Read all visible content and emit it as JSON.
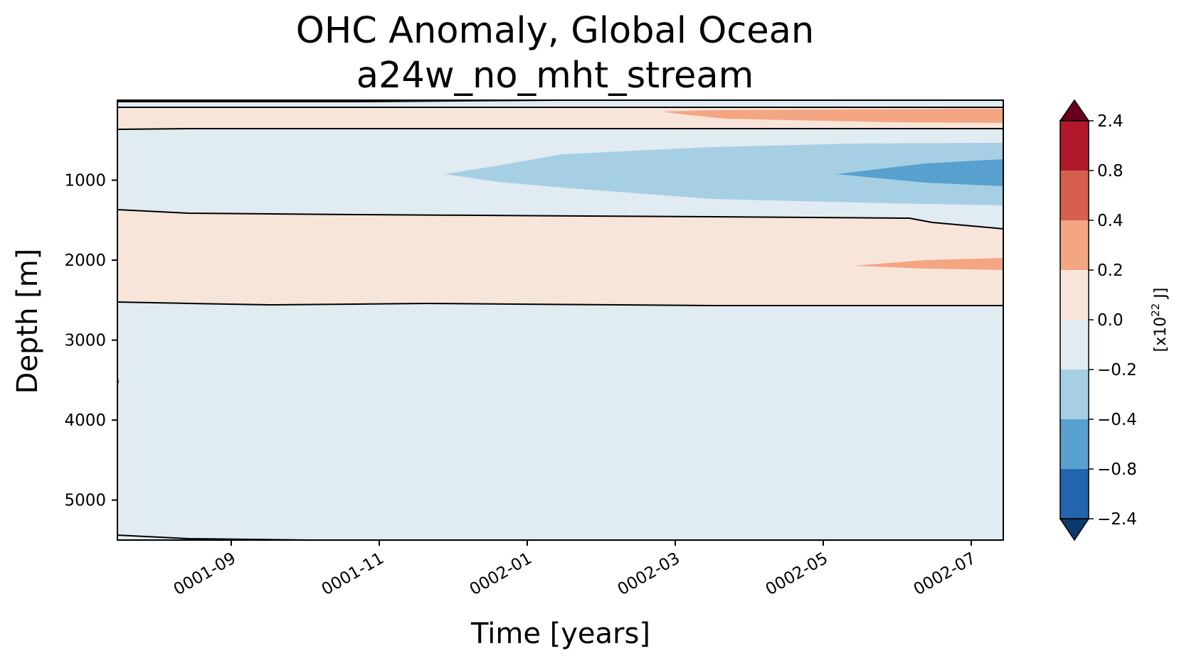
{
  "chart_data": {
    "type": "contourf",
    "title": "OHC Anomaly, Global Ocean",
    "subtitle": "a24w_no_mht_stream",
    "xlabel": "Time [years]",
    "ylabel": "Depth [m]",
    "x_ticks": [
      "0001-09",
      "0001-11",
      "0002-01",
      "0002-03",
      "0002-05",
      "0002-07"
    ],
    "y_ticks": [
      1000,
      2000,
      3000,
      4000,
      5000
    ],
    "ylim": [
      5500,
      0
    ],
    "y_inverted": true,
    "colorbar": {
      "label": "[x10",
      "label_exponent": "22",
      "label_unit": " J]",
      "levels": [
        "2.4",
        "0.8",
        "0.4",
        "0.2",
        "0.0",
        "−0.2",
        "−0.4",
        "−0.8",
        "−2.4"
      ],
      "extend": "both",
      "colors": {
        "over": "#67001f",
        "b_0.8_2.4": "#b2182b",
        "b_0.4_0.8": "#d6604d",
        "b_0.2_0.4": "#f4a582",
        "b_0.0_0.2": "#f8e5da",
        "b_-0.2_0.0": "#e1ebf2",
        "b_-0.4_-0.2": "#a7cfe4",
        "b_-0.8_-0.4": "#58a1cf",
        "b_-2.4_-0.8": "#2166ac",
        "under": "#0b3b6e"
      }
    },
    "regions": [
      {
        "name": "surface warm band",
        "depth_range_m": [
          100,
          350
        ],
        "band": "0.0 to 0.2"
      },
      {
        "name": "surface warming tongue",
        "depth_range_m": [
          130,
          300
        ],
        "band": "0.2 to 0.4",
        "start": "0002-03"
      },
      {
        "name": "cool lens",
        "depth_range_m": [
          500,
          1350
        ],
        "band": "-0.4 to -0.2",
        "start": "0001-12"
      },
      {
        "name": "cool core",
        "depth_range_m": [
          700,
          1100
        ],
        "band": "-0.8 to -0.4",
        "start": "0002-05"
      },
      {
        "name": "mid-depth warm band",
        "depth_range_m": [
          1400,
          2550
        ],
        "band": "0.0 to 0.2"
      },
      {
        "name": "mid-depth warming tongue",
        "depth_range_m": [
          1900,
          2150
        ],
        "band": "0.2 to 0.4",
        "start": "0002-05"
      },
      {
        "name": "deep ocean",
        "depth_range_m": [
          2550,
          5500
        ],
        "band": "-0.2 to 0.0"
      }
    ]
  }
}
